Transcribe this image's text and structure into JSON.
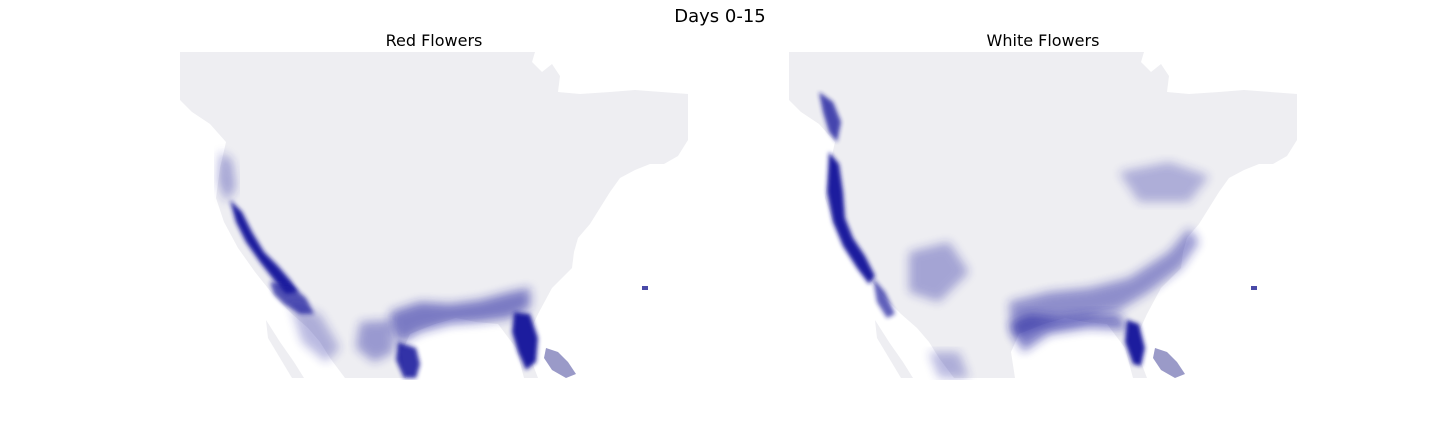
{
  "figure": {
    "title": "Days 0-15"
  },
  "panels": [
    {
      "title": "Red Flowers",
      "hotspots": [
        "Pacific coast",
        "Central Valley",
        "Southwest",
        "Gulf coast",
        "Texas coast",
        "Florida",
        "Caribbean islands"
      ]
    },
    {
      "title": "White Flowers",
      "hotspots": [
        "Pacific coast",
        "Pacific Northwest",
        "Central Valley",
        "Atlantic coast",
        "Gulf coast",
        "Florida",
        "Caribbean islands"
      ]
    }
  ],
  "colors": {
    "land_background": "#eeeef2",
    "low": "#e4e5ef",
    "high": "#1a1a9e"
  }
}
